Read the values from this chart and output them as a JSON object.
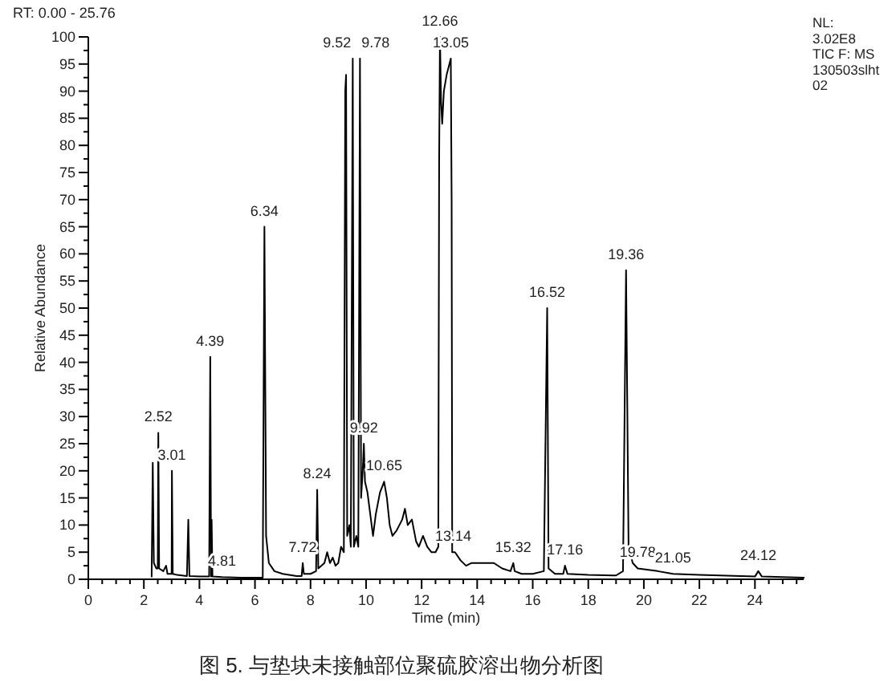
{
  "chart_data": {
    "type": "line",
    "xlabel": "Time (min)",
    "ylabel": "Relative Abundance",
    "xlim": [
      0,
      25.76
    ],
    "ylim": [
      0,
      100
    ],
    "xticks": [
      0,
      2,
      4,
      6,
      8,
      10,
      12,
      14,
      16,
      18,
      20,
      22,
      24
    ],
    "yticks": [
      0,
      5,
      10,
      15,
      20,
      25,
      30,
      35,
      40,
      45,
      50,
      55,
      60,
      65,
      70,
      75,
      80,
      85,
      90,
      95,
      100
    ],
    "grid": false,
    "line_style": "solid",
    "series": [
      {
        "color": "#000000",
        "x": [
          2.28,
          2.32,
          2.36,
          2.45,
          2.5,
          2.52,
          2.55,
          2.7,
          2.8,
          2.85,
          3.0,
          3.01,
          3.04,
          3.2,
          3.55,
          3.6,
          3.64,
          4.0,
          4.35,
          4.39,
          4.42,
          4.44,
          4.47,
          4.81,
          5.5,
          6.28,
          6.34,
          6.4,
          6.5,
          6.7,
          7.0,
          7.5,
          7.68,
          7.72,
          7.76,
          8.0,
          8.2,
          8.24,
          8.28,
          8.5,
          8.6,
          8.7,
          8.8,
          8.9,
          9.0,
          9.1,
          9.2,
          9.25,
          9.28,
          9.32,
          9.4,
          9.45,
          9.52,
          9.56,
          9.65,
          9.72,
          9.78,
          9.82,
          9.88,
          9.92,
          9.96,
          10.05,
          10.15,
          10.25,
          10.35,
          10.5,
          10.65,
          10.75,
          10.85,
          10.95,
          11.1,
          11.3,
          11.4,
          11.5,
          11.65,
          11.8,
          11.9,
          12.05,
          12.2,
          12.35,
          12.5,
          12.6,
          12.63,
          12.66,
          12.7,
          12.74,
          12.8,
          12.9,
          13.0,
          13.05,
          13.08,
          13.1,
          13.14,
          13.2,
          13.4,
          13.6,
          13.8,
          14.2,
          14.6,
          14.9,
          15.2,
          15.3,
          15.35,
          15.6,
          16.0,
          16.4,
          16.52,
          16.57,
          16.8,
          17.1,
          17.16,
          17.25,
          18.0,
          19.0,
          19.25,
          19.36,
          19.45,
          19.6,
          19.78,
          20.5,
          21.05,
          22.0,
          24.0,
          24.12,
          24.25,
          25.76
        ],
        "values": [
          0.5,
          21.5,
          3,
          2,
          2,
          27,
          2,
          1.5,
          2.5,
          1,
          1,
          20,
          1,
          0.8,
          0.6,
          11,
          0.6,
          0.5,
          0.5,
          41,
          0.5,
          11,
          0.5,
          0.4,
          0.3,
          0.3,
          65,
          8,
          3,
          1.5,
          1,
          0.6,
          0.6,
          3,
          1,
          1,
          1.5,
          16.5,
          2,
          3,
          5,
          3,
          4,
          2.5,
          3,
          6,
          5,
          90,
          93,
          8,
          10,
          6,
          96,
          6,
          8,
          6,
          96,
          15,
          20,
          25,
          18,
          16,
          12,
          8,
          12,
          16,
          18,
          15,
          10,
          8,
          9,
          11,
          13,
          10,
          11,
          7,
          6,
          8,
          6,
          5,
          5,
          6,
          77,
          100,
          88,
          84,
          90,
          93,
          95,
          96,
          70,
          5,
          5,
          5,
          3.5,
          2.5,
          3,
          3,
          3,
          2,
          1.5,
          3,
          1.5,
          1,
          1,
          1.5,
          50,
          2,
          1,
          1,
          2.5,
          1,
          0.8,
          0.7,
          1.5,
          57,
          6,
          3,
          2,
          1.5,
          1,
          0.8,
          0.5,
          1.5,
          0.5,
          0.3
        ]
      }
    ],
    "annotations": [
      "RT: 0.00 - 25.76",
      "NL:\n3.02E8\nTIC F:  MS\n130503slht\n02",
      "图 5.  与垫块未接触部位聚硫胶溶出物分析图",
      {
        "text": "2.52",
        "x": 2.52,
        "y": 27
      },
      {
        "text": "3.01",
        "x": 3.01,
        "y": 20
      },
      {
        "text": "4.39",
        "x": 4.39,
        "y": 41
      },
      {
        "text": "4.81",
        "x": 4.81,
        "y": 0.4
      },
      {
        "text": "6.34",
        "x": 6.34,
        "y": 65
      },
      {
        "text": "7.72",
        "x": 7.72,
        "y": 3
      },
      {
        "text": "8.24",
        "x": 8.24,
        "y": 16.5
      },
      {
        "text": "9.52",
        "x": 9.52,
        "y": 96
      },
      {
        "text": "9.78",
        "x": 9.78,
        "y": 96
      },
      {
        "text": "9.92",
        "x": 9.92,
        "y": 25
      },
      {
        "text": "10.65",
        "x": 10.65,
        "y": 18
      },
      {
        "text": "12.66",
        "x": 12.66,
        "y": 100
      },
      {
        "text": "13.05",
        "x": 13.05,
        "y": 96
      },
      {
        "text": "13.14",
        "x": 13.14,
        "y": 5
      },
      {
        "text": "15.32",
        "x": 15.3,
        "y": 3
      },
      {
        "text": "16.52",
        "x": 16.52,
        "y": 50
      },
      {
        "text": "17.16",
        "x": 17.16,
        "y": 2.5
      },
      {
        "text": "19.36",
        "x": 19.36,
        "y": 57
      },
      {
        "text": "19.78",
        "x": 19.78,
        "y": 2
      },
      {
        "text": "21.05",
        "x": 21.05,
        "y": 1
      },
      {
        "text": "24.12",
        "x": 24.12,
        "y": 1.5
      }
    ]
  }
}
